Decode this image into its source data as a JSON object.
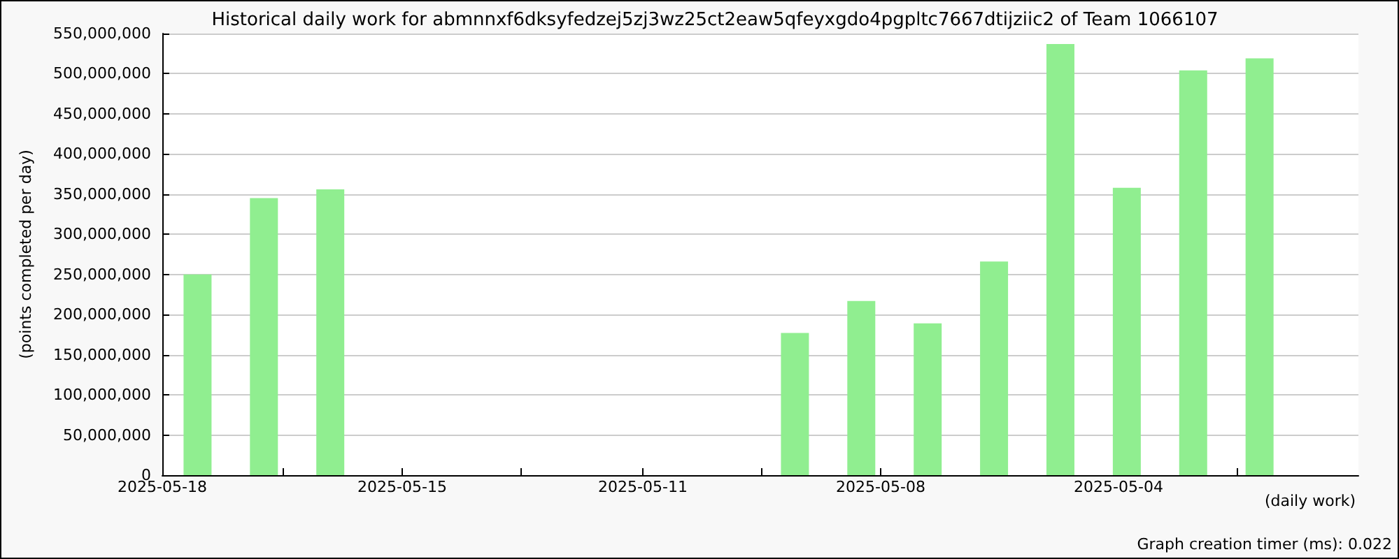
{
  "chart_data": {
    "type": "bar",
    "title": "Historical daily work for abmnnxf6dksyfedzej5zj3wz25ct2eaw5qfeyxgdo4pgpltc7667dtijziic2 of Team 1066107",
    "ylabel": "(points completed per day)",
    "xlabel": "(daily work)",
    "annotations": [
      "Graph creation timer (ms): 0.022"
    ],
    "x": [
      "2025-05-18",
      "2025-05-17",
      "2025-05-16",
      "2025-05-09",
      "2025-05-08",
      "2025-05-07",
      "2025-05-06",
      "2025-05-05",
      "2025-05-04",
      "2025-05-03",
      "2025-05-02"
    ],
    "values": [
      250000000,
      345000000,
      356000000,
      177000000,
      217000000,
      189000000,
      266000000,
      537000000,
      358000000,
      504000000,
      519000000
    ],
    "color": "#90ee90",
    "xlim": [
      "2025-05-18T12:45",
      "2025-04-30T12:15"
    ],
    "xticks": [
      {
        "value": "2025-05-18T12:45",
        "label": "2025-05-18"
      },
      {
        "value": "2025-05-16T17:00",
        "label": null
      },
      {
        "value": "2025-05-14T22:00",
        "label": "2025-05-15"
      },
      {
        "value": "2025-05-13T03:00",
        "label": null
      },
      {
        "value": "2025-05-11T07:00",
        "label": "2025-05-11"
      },
      {
        "value": "2025-05-09T12:00",
        "label": null
      },
      {
        "value": "2025-05-07T17:00",
        "label": "2025-05-08"
      },
      {
        "value": "2025-05-05T22:00",
        "label": null
      },
      {
        "value": "2025-05-04T03:00",
        "label": "2025-05-04"
      },
      {
        "value": "2025-05-02T08:00",
        "label": null
      }
    ],
    "ylim": [
      0,
      550000000
    ],
    "yticks": [
      0,
      {
        "value": 50000000,
        "label": "50,000,000"
      },
      {
        "value": 100000000,
        "label": "100,000,000"
      },
      {
        "value": 150000000,
        "label": "150,000,000"
      },
      {
        "value": 200000000,
        "label": "200,000,000"
      },
      {
        "value": 250000000,
        "label": "250,000,000"
      },
      {
        "value": 300000000,
        "label": "300,000,000"
      },
      {
        "value": 350000000,
        "label": "350,000,000"
      },
      {
        "value": 400000000,
        "label": "400,000,000"
      },
      {
        "value": 450000000,
        "label": "450,000,000"
      },
      {
        "value": 500000000,
        "label": "500,000,000"
      },
      {
        "value": 550000000,
        "label": "550,000,000"
      }
    ],
    "grid": "y"
  }
}
